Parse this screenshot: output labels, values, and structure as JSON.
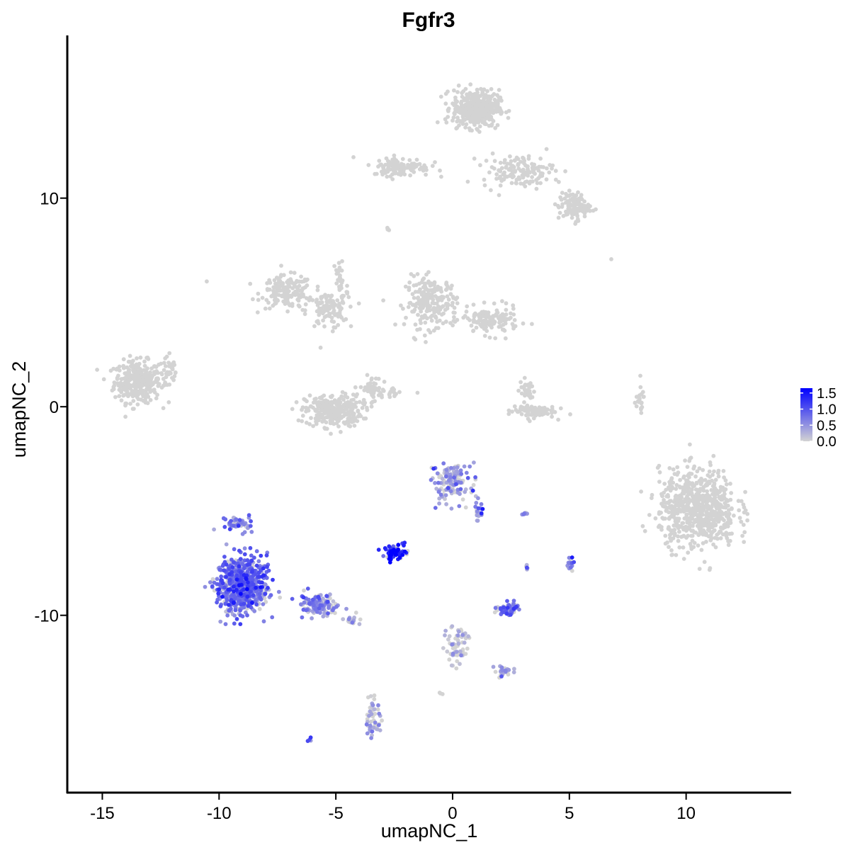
{
  "chart_data": {
    "type": "scatter",
    "title": "Fgfr3",
    "xlabel": "umapNC_1",
    "ylabel": "umapNC_2",
    "xlim": [
      -16.5,
      14.5
    ],
    "ylim": [
      -18.5,
      17.8
    ],
    "x_ticks": [
      -15,
      -10,
      -5,
      0,
      5,
      10
    ],
    "x_tick_labels": [
      "-15",
      "-10",
      "-5",
      "0",
      "5",
      "10"
    ],
    "y_ticks": [
      -10,
      0,
      10
    ],
    "y_tick_labels": [
      "-10",
      "0",
      "10"
    ],
    "grid": false,
    "legend_position": "right",
    "color_scale": {
      "low_color": "#d3d3d3",
      "high_color": "#0000ff",
      "min": 0.0,
      "max": 1.65,
      "ticks": [
        0.0,
        0.5,
        1.0,
        1.5
      ],
      "tick_labels": [
        "0.0",
        "0.5",
        "1.0",
        "1.5"
      ]
    },
    "clusters": [
      {
        "center": [
          -13.5,
          1.2
        ],
        "spread": [
          0.9,
          0.9
        ],
        "n": 320,
        "expr": 0
      },
      {
        "center": [
          -12.2,
          1.6
        ],
        "spread": [
          0.5,
          0.9
        ],
        "n": 40,
        "expr": 0
      },
      {
        "center": [
          -7.1,
          5.5
        ],
        "spread": [
          1.0,
          0.7
        ],
        "n": 160,
        "expr": 0
      },
      {
        "center": [
          -5.4,
          4.6
        ],
        "spread": [
          0.8,
          0.8
        ],
        "n": 90,
        "expr": 0
      },
      {
        "center": [
          -4.8,
          5.8
        ],
        "spread": [
          0.3,
          1.6
        ],
        "n": 40,
        "expr": 0
      },
      {
        "center": [
          -5.1,
          -0.2
        ],
        "spread": [
          1.1,
          0.7
        ],
        "n": 300,
        "expr": 0
      },
      {
        "center": [
          -3.5,
          0.8
        ],
        "spread": [
          0.4,
          0.6
        ],
        "n": 40,
        "expr": 0
      },
      {
        "center": [
          -0.9,
          5.0
        ],
        "spread": [
          1.0,
          1.1
        ],
        "n": 220,
        "expr": 0
      },
      {
        "center": [
          1.6,
          4.1
        ],
        "spread": [
          1.1,
          0.6
        ],
        "n": 130,
        "expr": 0
      },
      {
        "center": [
          -2.5,
          0.7
        ],
        "spread": [
          0.8,
          0.3
        ],
        "n": 20,
        "expr": 0
      },
      {
        "center": [
          1.0,
          14.3
        ],
        "spread": [
          0.9,
          0.8
        ],
        "n": 420,
        "expr": 0
      },
      {
        "center": [
          -2.2,
          11.5
        ],
        "spread": [
          1.1,
          0.4
        ],
        "n": 120,
        "expr": 0
      },
      {
        "center": [
          2.8,
          11.3
        ],
        "spread": [
          1.4,
          0.7
        ],
        "n": 140,
        "expr": 0
      },
      {
        "center": [
          5.2,
          9.6
        ],
        "spread": [
          0.6,
          0.6
        ],
        "n": 110,
        "expr": 0
      },
      {
        "center": [
          3.4,
          -0.2
        ],
        "spread": [
          0.9,
          0.3
        ],
        "n": 90,
        "expr": 0
      },
      {
        "center": [
          3.2,
          0.8
        ],
        "spread": [
          0.3,
          0.5
        ],
        "n": 30,
        "expr": 0
      },
      {
        "center": [
          8.0,
          0.3
        ],
        "spread": [
          0.2,
          0.6
        ],
        "n": 20,
        "expr": 0
      },
      {
        "center": [
          10.5,
          -4.9
        ],
        "spread": [
          1.5,
          1.7
        ],
        "n": 700,
        "expr": 0
      },
      {
        "center": [
          0.0,
          -3.6
        ],
        "spread": [
          0.7,
          0.8
        ],
        "n": 140,
        "expr": 0.35
      },
      {
        "center": [
          1.1,
          -5.0
        ],
        "spread": [
          0.2,
          0.5
        ],
        "n": 20,
        "expr": 0.6
      },
      {
        "center": [
          -9.0,
          -8.6
        ],
        "spread": [
          1.0,
          1.2
        ],
        "n": 650,
        "expr": 0.75
      },
      {
        "center": [
          -5.7,
          -9.5
        ],
        "spread": [
          0.8,
          0.5
        ],
        "n": 120,
        "expr": 0.55
      },
      {
        "center": [
          -4.3,
          -10.2
        ],
        "spread": [
          0.3,
          0.2
        ],
        "n": 20,
        "expr": 0.2
      },
      {
        "center": [
          -2.5,
          -7.0
        ],
        "spread": [
          0.4,
          0.3
        ],
        "n": 70,
        "expr": 1.35
      },
      {
        "center": [
          2.4,
          -9.7
        ],
        "spread": [
          0.4,
          0.25
        ],
        "n": 70,
        "expr": 0.7
      },
      {
        "center": [
          0.2,
          -11.3
        ],
        "spread": [
          0.5,
          1.0
        ],
        "n": 60,
        "expr": 0.05
      },
      {
        "center": [
          2.2,
          -12.7
        ],
        "spread": [
          0.4,
          0.2
        ],
        "n": 25,
        "expr": 0.25
      },
      {
        "center": [
          -3.4,
          -14.9
        ],
        "spread": [
          0.3,
          0.8
        ],
        "n": 50,
        "expr": 0.15
      },
      {
        "center": [
          5.0,
          -7.5
        ],
        "spread": [
          0.2,
          0.3
        ],
        "n": 15,
        "expr": 0.8
      },
      {
        "center": [
          3.1,
          -5.1
        ],
        "spread": [
          0.15,
          0.1
        ],
        "n": 6,
        "expr": 0.5
      },
      {
        "center": [
          3.2,
          -7.7
        ],
        "spread": [
          0.15,
          0.15
        ],
        "n": 5,
        "expr": 0.6
      },
      {
        "center": [
          -6.1,
          -16.0
        ],
        "spread": [
          0.1,
          0.1
        ],
        "n": 4,
        "expr": 0.8
      },
      {
        "center": [
          -9.2,
          -5.6
        ],
        "spread": [
          0.6,
          0.3
        ],
        "n": 50,
        "expr": 0.6
      },
      {
        "center": [
          6.8,
          7.1
        ],
        "spread": [
          0.05,
          0.05
        ],
        "n": 1,
        "expr": 0
      },
      {
        "center": [
          -10.5,
          6.0
        ],
        "spread": [
          0.05,
          0.05
        ],
        "n": 1,
        "expr": 0
      },
      {
        "center": [
          -2.8,
          8.5
        ],
        "spread": [
          0.1,
          0.1
        ],
        "n": 4,
        "expr": 0
      },
      {
        "center": [
          -0.5,
          -13.7
        ],
        "spread": [
          0.1,
          0.1
        ],
        "n": 3,
        "expr": 0
      }
    ]
  }
}
